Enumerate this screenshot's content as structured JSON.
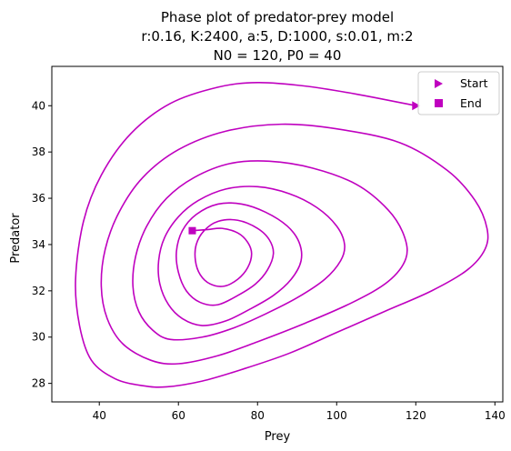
{
  "chart_data": {
    "type": "line",
    "title_lines": [
      "Phase plot of predator-prey model",
      "r:0.16, K:2400, a:5, D:1000, s:0.01, m:2",
      "N0 = 120, P0 = 40"
    ],
    "xlabel": "Prey",
    "ylabel": "Predator",
    "xlim": [
      28,
      142
    ],
    "ylim": [
      27.2,
      41.7
    ],
    "xticks": [
      40,
      60,
      80,
      100,
      120,
      140
    ],
    "yticks": [
      28,
      30,
      32,
      34,
      36,
      38,
      40
    ],
    "grid": false,
    "color": "#bf00bf",
    "legend": {
      "placement": "top-right",
      "entries": [
        {
          "label": "Start",
          "marker": "triangle-right"
        },
        {
          "label": "End",
          "marker": "square"
        }
      ]
    },
    "start_point": {
      "x": 120,
      "y": 40
    },
    "end_point": {
      "x": 63.5,
      "y": 34.6
    },
    "series": [
      {
        "points": [
          [
            120,
            40
          ],
          [
            105,
            40.5
          ],
          [
            92,
            40.85
          ],
          [
            80,
            41
          ],
          [
            70,
            40.8
          ],
          [
            58,
            40.1
          ],
          [
            48,
            38.8
          ],
          [
            40.5,
            37
          ],
          [
            36,
            35
          ],
          [
            34,
            32.5
          ],
          [
            35,
            30.5
          ],
          [
            38,
            29
          ],
          [
            44,
            28.2
          ],
          [
            51,
            27.9
          ],
          [
            57,
            27.85
          ],
          [
            66,
            28.1
          ],
          [
            76,
            28.6
          ],
          [
            88,
            29.3
          ],
          [
            100,
            30.2
          ],
          [
            112,
            31.1
          ],
          [
            124,
            32
          ],
          [
            133,
            32.9
          ],
          [
            137.5,
            33.8
          ],
          [
            138,
            34.7
          ],
          [
            135,
            35.9
          ],
          [
            128,
            37.2
          ],
          [
            116,
            38.4
          ],
          [
            100,
            39
          ],
          [
            86,
            39.2
          ],
          [
            72,
            38.9
          ],
          [
            60,
            38.1
          ],
          [
            51,
            36.9
          ],
          [
            45,
            35.4
          ],
          [
            41.5,
            33.8
          ],
          [
            40.5,
            32.2
          ],
          [
            42,
            30.8
          ],
          [
            46,
            29.7
          ],
          [
            53,
            29
          ],
          [
            60,
            28.85
          ],
          [
            70,
            29.2
          ],
          [
            80,
            29.8
          ],
          [
            92,
            30.6
          ],
          [
            104,
            31.5
          ],
          [
            113,
            32.4
          ],
          [
            117.5,
            33.4
          ],
          [
            117,
            34.4
          ],
          [
            113,
            35.5
          ],
          [
            105,
            36.6
          ],
          [
            94,
            37.3
          ],
          [
            83,
            37.6
          ],
          [
            73,
            37.5
          ],
          [
            64,
            36.9
          ],
          [
            57,
            36
          ],
          [
            52,
            34.8
          ],
          [
            49.2,
            33.5
          ],
          [
            48.5,
            32.2
          ],
          [
            50,
            31.1
          ],
          [
            53.5,
            30.3
          ],
          [
            58,
            29.9
          ],
          [
            66,
            30
          ],
          [
            74,
            30.4
          ],
          [
            82,
            31
          ],
          [
            90,
            31.7
          ],
          [
            97,
            32.5
          ],
          [
            101,
            33.3
          ],
          [
            102,
            34
          ],
          [
            100,
            34.8
          ],
          [
            95,
            35.6
          ],
          [
            88,
            36.2
          ],
          [
            80,
            36.5
          ],
          [
            72,
            36.4
          ],
          [
            65,
            35.9
          ],
          [
            60,
            35.2
          ],
          [
            56.5,
            34.3
          ],
          [
            55,
            33.3
          ],
          [
            55.3,
            32.3
          ],
          [
            57.5,
            31.4
          ],
          [
            61,
            30.8
          ],
          [
            66,
            30.5
          ],
          [
            72,
            30.7
          ],
          [
            78,
            31.2
          ],
          [
            84,
            31.8
          ],
          [
            88.5,
            32.5
          ],
          [
            91,
            33.3
          ],
          [
            90.5,
            34.1
          ],
          [
            87.5,
            34.8
          ],
          [
            82,
            35.4
          ],
          [
            76,
            35.75
          ],
          [
            70,
            35.75
          ],
          [
            64.5,
            35.3
          ],
          [
            61,
            34.6
          ],
          [
            59.5,
            33.7
          ],
          [
            60,
            32.8
          ],
          [
            62,
            32
          ],
          [
            65.5,
            31.5
          ],
          [
            70,
            31.4
          ],
          [
            75,
            31.8
          ],
          [
            79.5,
            32.3
          ],
          [
            82.5,
            32.9
          ],
          [
            84,
            33.6
          ],
          [
            83,
            34.2
          ],
          [
            80,
            34.7
          ],
          [
            75,
            35.05
          ],
          [
            70,
            35
          ],
          [
            66.5,
            34.6
          ],
          [
            64.5,
            34
          ],
          [
            64.3,
            33.3
          ],
          [
            65.5,
            32.7
          ],
          [
            68,
            32.3
          ],
          [
            71.5,
            32.2
          ],
          [
            75,
            32.5
          ],
          [
            77.5,
            33
          ],
          [
            78.5,
            33.6
          ],
          [
            77.5,
            34.1
          ],
          [
            75,
            34.5
          ],
          [
            71,
            34.7
          ],
          [
            67.5,
            34.65
          ],
          [
            63.5,
            34.6
          ]
        ]
      }
    ]
  }
}
